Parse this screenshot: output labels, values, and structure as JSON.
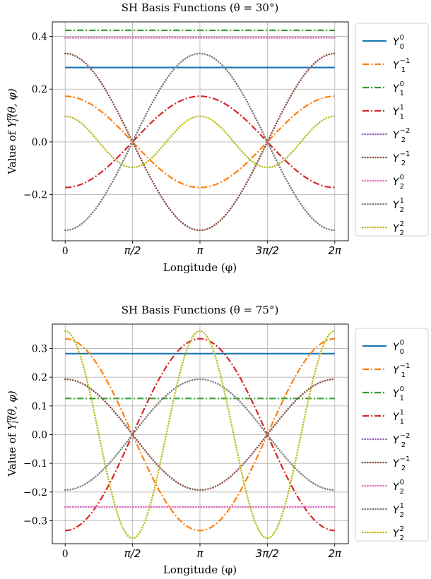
{
  "chart_data": [
    {
      "type": "line",
      "title": "SH Basis Functions (θ = 30°)",
      "xlabel": "Longitude (φ)",
      "ylabel": "Value of Y_l^m(θ, φ)",
      "ylabel_parts": {
        "pre": "Value of ",
        "sym": "Y",
        "sup": "m",
        "sub": "l",
        "args": "(θ, φ)"
      },
      "xlim": [
        -0.3,
        6.6
      ],
      "ylim": [
        -0.375,
        0.455
      ],
      "x_ticks": [
        {
          "value": 0,
          "label": "0"
        },
        {
          "value": 1.5708,
          "label": "π/2"
        },
        {
          "value": 3.1416,
          "label": "π"
        },
        {
          "value": 4.7124,
          "label": "3π/2"
        },
        {
          "value": 6.2832,
          "label": "2π"
        }
      ],
      "y_ticks": [
        {
          "value": -0.2,
          "label": "−0.2"
        },
        {
          "value": 0.0,
          "label": "0.0"
        },
        {
          "value": 0.2,
          "label": "0.2"
        },
        {
          "value": 0.4,
          "label": "0.4"
        }
      ],
      "grid": true,
      "legend_position": "outside-right",
      "series": [
        {
          "name": "Y_0^0",
          "sym": "Y",
          "sub": "0",
          "sup": "0",
          "color": "#1f77b4",
          "style": "solid",
          "form": "const",
          "amplitude": 0.282
        },
        {
          "name": "Y_1^-1",
          "sym": "Y",
          "sub": "1",
          "sup": "−1",
          "color": "#ff7f0e",
          "style": "dashdot",
          "form": "cos",
          "amplitude": 0.173
        },
        {
          "name": "Y_1^0",
          "sym": "Y",
          "sub": "1",
          "sup": "0",
          "color": "#2ca02c",
          "style": "dashdot",
          "form": "const",
          "amplitude": 0.423
        },
        {
          "name": "Y_1^1",
          "sym": "Y",
          "sub": "1",
          "sup": "1",
          "color": "#d62728",
          "style": "dashdot",
          "form": "cos",
          "amplitude": -0.173
        },
        {
          "name": "Y_2^-2",
          "sym": "Y",
          "sub": "2",
          "sup": "−2",
          "color": "#9467bd",
          "style": "dotted",
          "form": "const",
          "amplitude": 0.395
        },
        {
          "name": "Y_2^-1",
          "sym": "Y",
          "sub": "2",
          "sup": "−1",
          "color": "#8c564b",
          "style": "dotted",
          "form": "cos",
          "amplitude": 0.335
        },
        {
          "name": "Y_2^0",
          "sym": "Y",
          "sub": "2",
          "sup": "0",
          "color": "#e377c2",
          "style": "dotted",
          "form": "const",
          "amplitude": 0.395
        },
        {
          "name": "Y_2^1",
          "sym": "Y",
          "sub": "2",
          "sup": "1",
          "color": "#7f7f7f",
          "style": "dotted",
          "form": "cos",
          "amplitude": -0.335
        },
        {
          "name": "Y_2^2",
          "sym": "Y",
          "sub": "2",
          "sup": "2",
          "color": "#bcbd22",
          "style": "dotted",
          "form": "cos2",
          "amplitude": 0.097
        }
      ]
    },
    {
      "type": "line",
      "title": "SH Basis Functions (θ = 75°)",
      "xlabel": "Longitude (φ)",
      "ylabel": "Value of Y_l^m(θ, φ)",
      "ylabel_parts": {
        "pre": "Value of ",
        "sym": "Y",
        "sup": "m",
        "sub": "l",
        "args": "(θ, φ)"
      },
      "xlim": [
        -0.3,
        6.6
      ],
      "ylim": [
        -0.38,
        0.385
      ],
      "x_ticks": [
        {
          "value": 0,
          "label": "0"
        },
        {
          "value": 1.5708,
          "label": "π/2"
        },
        {
          "value": 3.1416,
          "label": "π"
        },
        {
          "value": 4.7124,
          "label": "3π/2"
        },
        {
          "value": 6.2832,
          "label": "2π"
        }
      ],
      "y_ticks": [
        {
          "value": -0.3,
          "label": "−0.3"
        },
        {
          "value": -0.2,
          "label": "−0.2"
        },
        {
          "value": -0.1,
          "label": "−0.1"
        },
        {
          "value": 0.0,
          "label": "0.0"
        },
        {
          "value": 0.1,
          "label": "0.1"
        },
        {
          "value": 0.2,
          "label": "0.2"
        },
        {
          "value": 0.3,
          "label": "0.3"
        }
      ],
      "grid": true,
      "legend_position": "outside-right",
      "series": [
        {
          "name": "Y_0^0",
          "sym": "Y",
          "sub": "0",
          "sup": "0",
          "color": "#1f77b4",
          "style": "solid",
          "form": "const",
          "amplitude": 0.282
        },
        {
          "name": "Y_1^-1",
          "sym": "Y",
          "sub": "1",
          "sup": "−1",
          "color": "#ff7f0e",
          "style": "dashdot",
          "form": "cos",
          "amplitude": 0.334
        },
        {
          "name": "Y_1^0",
          "sym": "Y",
          "sub": "1",
          "sup": "0",
          "color": "#2ca02c",
          "style": "dashdot",
          "form": "const",
          "amplitude": 0.126
        },
        {
          "name": "Y_1^1",
          "sym": "Y",
          "sub": "1",
          "sup": "1",
          "color": "#d62728",
          "style": "dashdot",
          "form": "cos",
          "amplitude": -0.334
        },
        {
          "name": "Y_2^-2",
          "sym": "Y",
          "sub": "2",
          "sup": "−2",
          "color": "#9467bd",
          "style": "dotted",
          "form": "const",
          "amplitude": -0.252
        },
        {
          "name": "Y_2^-1",
          "sym": "Y",
          "sub": "2",
          "sup": "−1",
          "color": "#8c564b",
          "style": "dotted",
          "form": "cos",
          "amplitude": 0.193
        },
        {
          "name": "Y_2^0",
          "sym": "Y",
          "sub": "2",
          "sup": "0",
          "color": "#e377c2",
          "style": "dotted",
          "form": "const",
          "amplitude": -0.252
        },
        {
          "name": "Y_2^1",
          "sym": "Y",
          "sub": "2",
          "sup": "1",
          "color": "#7f7f7f",
          "style": "dotted",
          "form": "cos",
          "amplitude": -0.193
        },
        {
          "name": "Y_2^2",
          "sym": "Y",
          "sub": "2",
          "sup": "2",
          "color": "#bcbd22",
          "style": "dotted",
          "form": "cos2",
          "amplitude": 0.361
        }
      ]
    }
  ]
}
